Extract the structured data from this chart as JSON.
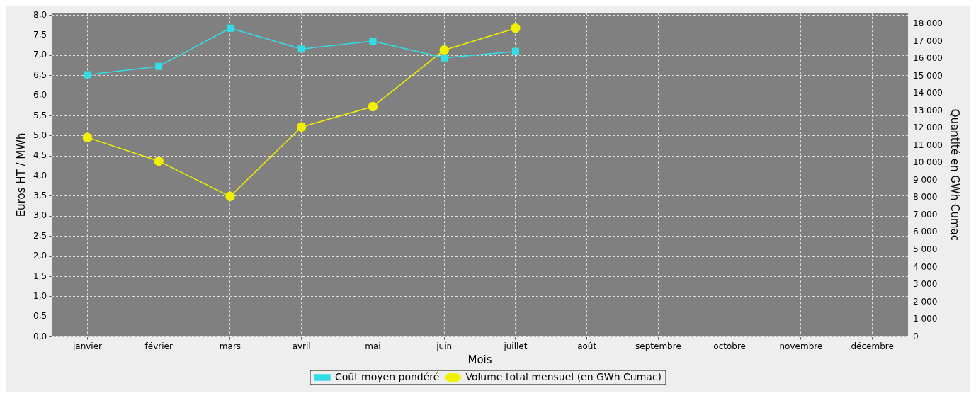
{
  "chart_data": {
    "type": "line",
    "xlabel": "Mois",
    "ylabel": "Euros HT / MWh",
    "y2label": "Quantité en GWh Cumac",
    "categories": [
      "janvier",
      "février",
      "mars",
      "avril",
      "mai",
      "juin",
      "juillet",
      "août",
      "septembre",
      "octobre",
      "novembre",
      "décembre"
    ],
    "series": [
      {
        "name": "Coût moyen pondéré",
        "color": "#33dde6",
        "marker": "square",
        "values": [
          6.52,
          6.73,
          7.68,
          7.16,
          7.36,
          6.94,
          7.1,
          null,
          null,
          null,
          null,
          null
        ]
      },
      {
        "name": "Volume total mensuel (en GWh Cumac)",
        "color": "#f0f000",
        "marker": "circle",
        "axis": "y2",
        "values": [
          11470,
          10110,
          8080,
          12080,
          13250,
          16500,
          17760,
          null,
          null,
          null,
          null,
          null
        ]
      }
    ],
    "ylim": [
      0,
      8.06
    ],
    "yticks": [
      {
        "value": 0,
        "label": "0,0"
      },
      {
        "value": 0.5,
        "label": "0,5"
      },
      {
        "value": 1,
        "label": "1,0"
      },
      {
        "value": 1.5,
        "label": "1,5"
      },
      {
        "value": 2,
        "label": "2,0"
      },
      {
        "value": 2.5,
        "label": "2,5"
      },
      {
        "value": 3,
        "label": "3,0"
      },
      {
        "value": 3.5,
        "label": "3,5"
      },
      {
        "value": 4,
        "label": "4,0"
      },
      {
        "value": 4.5,
        "label": "4,5"
      },
      {
        "value": 5,
        "label": "5,0"
      },
      {
        "value": 5.5,
        "label": "5,5"
      },
      {
        "value": 6,
        "label": "6,0"
      },
      {
        "value": 6.5,
        "label": "6,5"
      },
      {
        "value": 7,
        "label": "7,0"
      },
      {
        "value": 7.5,
        "label": "7,5"
      },
      {
        "value": 8,
        "label": "8,0"
      }
    ],
    "y2lim": [
      0,
      18640
    ],
    "y2ticks": [
      0,
      {
        "value": 1000,
        "label": "1 000"
      },
      {
        "value": 2000,
        "label": "2 000"
      },
      {
        "value": 3000,
        "label": "3 000"
      },
      {
        "value": 4000,
        "label": "4 000"
      },
      {
        "value": 5000,
        "label": "5 000"
      },
      {
        "value": 6000,
        "label": "6 000"
      },
      {
        "value": 7000,
        "label": "7 000"
      },
      {
        "value": 8000,
        "label": "8 000"
      },
      {
        "value": 9000,
        "label": "9 000"
      },
      {
        "value": 10000,
        "label": "10 000"
      },
      {
        "value": 11000,
        "label": "11 000"
      },
      {
        "value": 12000,
        "label": "12 000"
      },
      {
        "value": 13000,
        "label": "13 000"
      },
      {
        "value": 14000,
        "label": "14 000"
      },
      {
        "value": 15000,
        "label": "15 000"
      },
      {
        "value": 16000,
        "label": "16 000"
      },
      {
        "value": 17000,
        "label": "17 000"
      },
      {
        "value": 18000,
        "label": "18 000"
      }
    ],
    "grid": true,
    "legend": "bottom",
    "line_style": "solid"
  }
}
